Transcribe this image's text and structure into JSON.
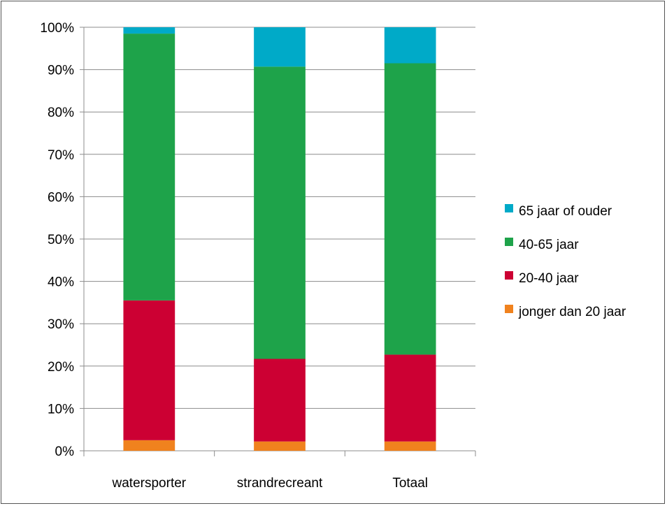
{
  "chart_data": {
    "type": "bar",
    "stacked": true,
    "percent_stacked": true,
    "categories": [
      "watersporter",
      "strandrecreant",
      "Totaal"
    ],
    "series": [
      {
        "name": "jonger dan 20 jaar",
        "values": [
          2.5,
          2.2,
          2.2
        ],
        "color": "#F0821E"
      },
      {
        "name": "20-40 jaar",
        "values": [
          33.0,
          19.5,
          20.5
        ],
        "color": "#CC0033"
      },
      {
        "name": "40-65 jaar",
        "values": [
          63.0,
          69.0,
          68.8
        ],
        "color": "#1EA34A"
      },
      {
        "name": "65 jaar of ouder",
        "values": [
          1.5,
          9.3,
          8.5
        ],
        "color": "#00AAC8"
      }
    ],
    "y_ticks": [
      "0%",
      "10%",
      "20%",
      "30%",
      "40%",
      "50%",
      "60%",
      "70%",
      "80%",
      "90%",
      "100%"
    ],
    "ylim": [
      0,
      100
    ],
    "grid": true,
    "legend_position": "right",
    "title": "",
    "xlabel": "",
    "ylabel": ""
  }
}
